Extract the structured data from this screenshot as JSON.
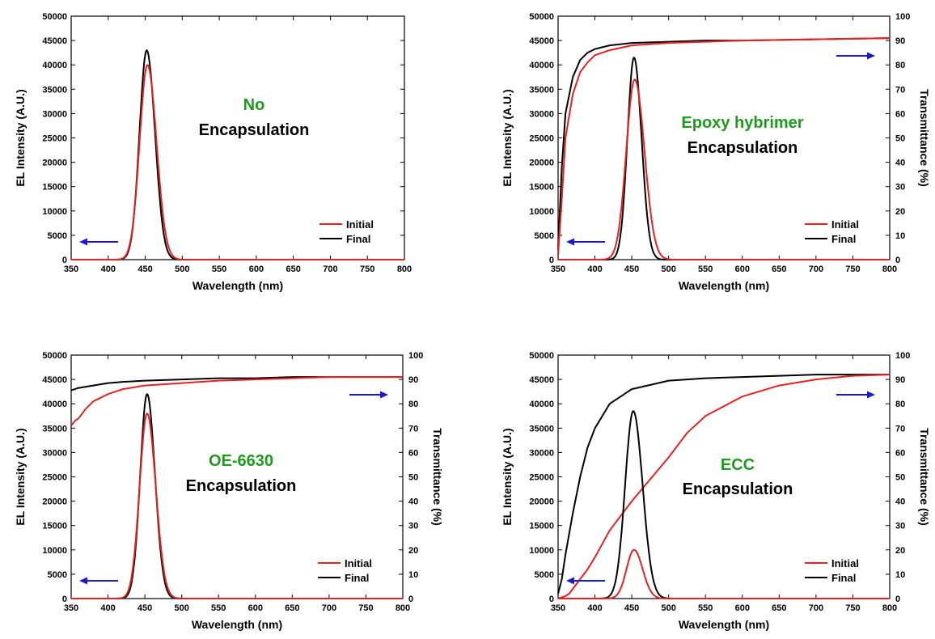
{
  "colors": {
    "initial": "#e32222",
    "final": "#000000",
    "annotation_green": "#1f9a1f",
    "arrow": "#1a1acc"
  },
  "chart_data": [
    {
      "type": "line",
      "xlabel": "Wavelength (nm)",
      "ylabel": "EL Intensity (A.U.)",
      "y2label": "",
      "xlim": [
        350,
        800
      ],
      "ylim": [
        0,
        50000
      ],
      "y2lim": null,
      "xticks": [
        "350",
        "400",
        "450",
        "500",
        "550",
        "600",
        "650",
        "700",
        "750",
        "800"
      ],
      "yticks": [
        "0",
        "5000",
        "10000",
        "15000",
        "20000",
        "25000",
        "30000",
        "35000",
        "40000",
        "45000",
        "50000"
      ],
      "y2ticks": [],
      "annotation": {
        "line1": "No",
        "line2": "Encapsulation"
      },
      "legend": {
        "position": "bottom-right",
        "entries": [
          "Initial",
          "Final"
        ]
      },
      "arrows": [
        {
          "direction": "left",
          "axis": "left"
        }
      ],
      "peaks": [
        {
          "name": "Initial",
          "center": 453,
          "height": 40000,
          "fwhm": 25
        },
        {
          "name": "Final",
          "center": 452,
          "height": 43000,
          "fwhm": 23
        }
      ],
      "transmittance": []
    },
    {
      "type": "line",
      "xlabel": "Wavelength (nm)",
      "ylabel": "EL Intensity (A.U.)",
      "y2label": "Transmittance (%)",
      "xlim": [
        350,
        800
      ],
      "ylim": [
        0,
        50000
      ],
      "y2lim": [
        0,
        100
      ],
      "xticks": [
        "350",
        "400",
        "450",
        "500",
        "550",
        "600",
        "650",
        "700",
        "750",
        "800"
      ],
      "yticks": [
        "0",
        "5000",
        "10000",
        "15000",
        "20000",
        "25000",
        "30000",
        "35000",
        "40000",
        "45000",
        "50000"
      ],
      "y2ticks": [
        "0",
        "10",
        "20",
        "30",
        "40",
        "50",
        "60",
        "70",
        "80",
        "90",
        "100"
      ],
      "annotation": {
        "line1": "Epoxy hybrimer",
        "line2": "Encapsulation"
      },
      "legend": {
        "position": "bottom-right",
        "entries": [
          "Initial",
          "Final"
        ]
      },
      "arrows": [
        {
          "direction": "left",
          "axis": "left"
        },
        {
          "direction": "right",
          "axis": "right"
        }
      ],
      "peaks": [
        {
          "name": "Initial",
          "center": 454,
          "height": 37000,
          "fwhm": 27
        },
        {
          "name": "Final",
          "center": 453,
          "height": 41500,
          "fwhm": 21
        }
      ],
      "transmittance": [
        {
          "name": "Initial",
          "x": [
            350,
            355,
            360,
            370,
            380,
            390,
            400,
            420,
            450,
            500,
            550,
            600,
            700,
            800
          ],
          "y": [
            2,
            25,
            50,
            68,
            77,
            81,
            84,
            86,
            88,
            89,
            89.5,
            90,
            90.5,
            91
          ]
        },
        {
          "name": "Final",
          "x": [
            350,
            355,
            360,
            370,
            380,
            390,
            400,
            420,
            450,
            500,
            550,
            600,
            700,
            800
          ],
          "y": [
            4,
            38,
            60,
            75,
            82,
            85,
            86.5,
            88,
            89,
            89.5,
            90,
            90,
            90.5,
            91
          ]
        }
      ]
    },
    {
      "type": "line",
      "xlabel": "Wavelength (nm)",
      "ylabel": "EL Intensity (A.U.)",
      "y2label": "Transmittance (%)",
      "xlim": [
        350,
        800
      ],
      "ylim": [
        0,
        50000
      ],
      "y2lim": [
        0,
        100
      ],
      "xticks": [
        "350",
        "400",
        "450",
        "500",
        "550",
        "600",
        "650",
        "700",
        "750",
        "800"
      ],
      "yticks": [
        "0",
        "5000",
        "10000",
        "15000",
        "20000",
        "25000",
        "30000",
        "35000",
        "40000",
        "45000",
        "50000"
      ],
      "y2ticks": [
        "0",
        "10",
        "20",
        "30",
        "40",
        "50",
        "60",
        "70",
        "80",
        "90",
        "100"
      ],
      "annotation": {
        "line1": "OE-6630",
        "line2": "Encapsulation"
      },
      "legend": {
        "position": "bottom-right",
        "entries": [
          "Initial",
          "Final"
        ]
      },
      "arrows": [
        {
          "direction": "left",
          "axis": "left"
        },
        {
          "direction": "right",
          "axis": "right"
        }
      ],
      "peaks": [
        {
          "name": "Initial",
          "center": 453,
          "height": 38000,
          "fwhm": 24
        },
        {
          "name": "Final",
          "center": 453,
          "height": 42000,
          "fwhm": 22
        }
      ],
      "transmittance": [
        {
          "name": "Initial",
          "x": [
            350,
            355,
            360,
            370,
            380,
            390,
            400,
            420,
            450,
            500,
            550,
            600,
            650,
            700,
            800
          ],
          "y": [
            71,
            73,
            74,
            78,
            81,
            82.5,
            84,
            86,
            87.5,
            88.5,
            89.5,
            90,
            90.5,
            91,
            91
          ]
        },
        {
          "name": "Final",
          "x": [
            350,
            360,
            380,
            400,
            420,
            450,
            500,
            550,
            600,
            650,
            700,
            800
          ],
          "y": [
            85.5,
            86.5,
            87.5,
            88.5,
            89,
            89.5,
            90,
            90.5,
            90.5,
            91,
            91,
            91
          ]
        }
      ]
    },
    {
      "type": "line",
      "xlabel": "Wavelength (nm)",
      "ylabel": "EL Intensity (A.U.)",
      "y2label": "Transmittance (%)",
      "xlim": [
        350,
        800
      ],
      "ylim": [
        0,
        50000
      ],
      "y2lim": [
        0,
        100
      ],
      "xticks": [
        "350",
        "400",
        "450",
        "500",
        "550",
        "600",
        "650",
        "700",
        "750",
        "800"
      ],
      "yticks": [
        "0",
        "5000",
        "10000",
        "15000",
        "20000",
        "25000",
        "30000",
        "35000",
        "40000",
        "45000",
        "50000"
      ],
      "y2ticks": [
        "0",
        "10",
        "20",
        "30",
        "40",
        "50",
        "60",
        "70",
        "80",
        "90",
        "100"
      ],
      "annotation": {
        "line1": "ECC",
        "line2": "Encapsulation"
      },
      "legend": {
        "position": "bottom-right",
        "entries": [
          "Initial",
          "Final"
        ]
      },
      "arrows": [
        {
          "direction": "left",
          "axis": "left"
        },
        {
          "direction": "right",
          "axis": "right"
        }
      ],
      "peaks": [
        {
          "name": "Initial",
          "center": 453,
          "height": 10000,
          "fwhm": 24
        },
        {
          "name": "Final",
          "center": 452,
          "height": 38500,
          "fwhm": 26
        }
      ],
      "transmittance": [
        {
          "name": "Initial",
          "x": [
            350,
            360,
            365,
            370,
            380,
            390,
            400,
            420,
            450,
            475,
            500,
            525,
            550,
            600,
            650,
            700,
            750,
            800
          ],
          "y": [
            0,
            1,
            2,
            4,
            8,
            12,
            17,
            28,
            40,
            49,
            58,
            68,
            75,
            83,
            87.5,
            90,
            91.5,
            92
          ]
        },
        {
          "name": "Final",
          "x": [
            350,
            355,
            360,
            370,
            380,
            390,
            400,
            420,
            450,
            500,
            550,
            600,
            650,
            700,
            800
          ],
          "y": [
            2,
            8,
            18,
            35,
            50,
            62,
            70,
            80,
            86,
            89.5,
            90.5,
            91,
            91.5,
            92,
            92
          ]
        }
      ]
    }
  ]
}
